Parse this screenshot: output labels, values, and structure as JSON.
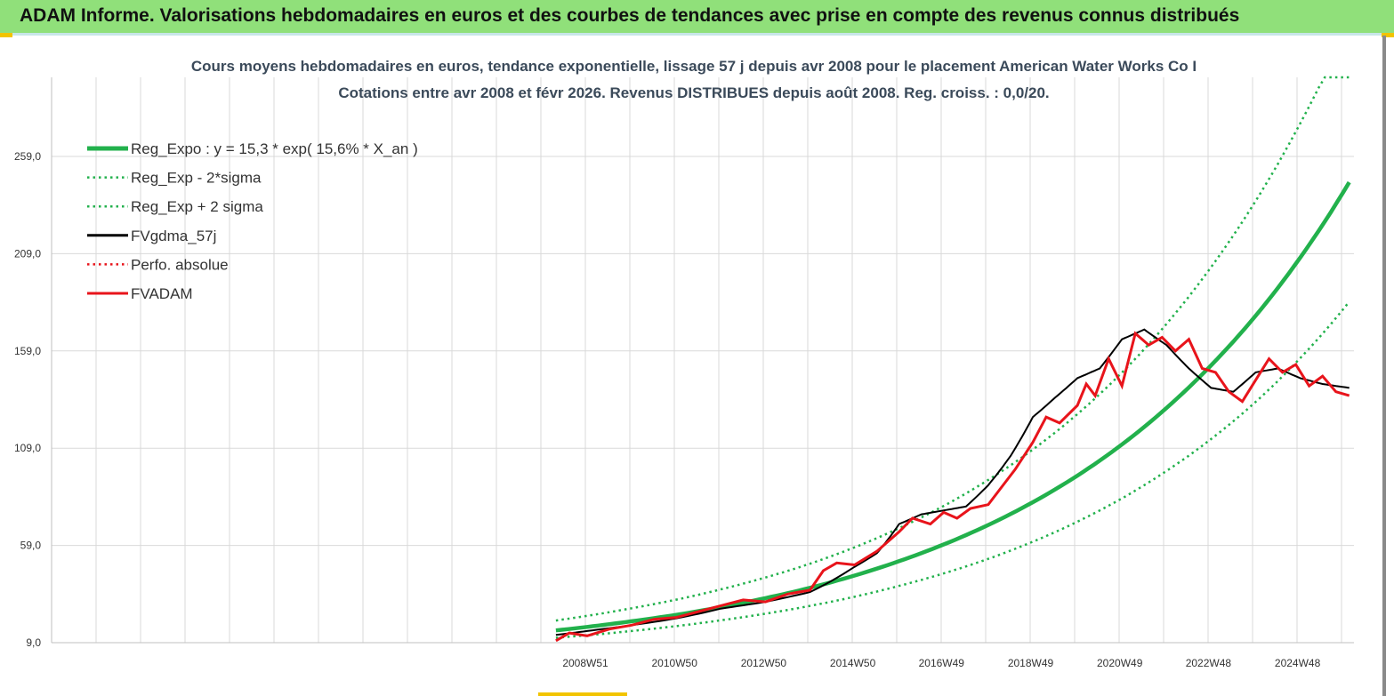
{
  "header": {
    "title": "ADAM Informe. Valorisations hebdomadaires en euros et des courbes de tendances avec prise en compte des revenus connus distribués"
  },
  "colors": {
    "header_bg": "#90e07a",
    "reg_expo": "#22b14c",
    "fvgdma": "#000000",
    "fvadam": "#e8141b",
    "perfo": "#e8141b",
    "grid": "#d9d9d9"
  },
  "chart_data": {
    "type": "line",
    "title": "Cours moyens hebdomadaires en euros, tendance exponentielle, lissage 57 j depuis avr 2008 pour le placement American Water Works Co I",
    "subtitle": "Cotations entre avr 2008 et févr 2026. Revenus DISTRIBUES depuis août 2008. Reg. croiss. : 0,0/20.",
    "xlabel": "",
    "ylabel": "",
    "ylim": [
      9.0,
      290.0
    ],
    "y_ticks": [
      "9,0",
      "59,0",
      "109,0",
      "159,0",
      "209,0",
      "259,0"
    ],
    "y_tick_values": [
      9,
      59,
      109,
      159,
      209,
      259
    ],
    "x_tick_labels": [
      "2008W51",
      "2010W50",
      "2012W50",
      "2014W50",
      "2016W49",
      "2018W49",
      "2020W49",
      "2022W48",
      "2024W48"
    ],
    "x_tick_years": [
      2008.96,
      2010.96,
      2012.96,
      2014.96,
      2016.95,
      2018.95,
      2020.95,
      2022.94,
      2024.94
    ],
    "x_start_year": 2008.3,
    "x_end_year": 2026.1,
    "grid": true,
    "legend_position": "top-left",
    "regression": {
      "a": 15.3,
      "rate": 0.156,
      "origin_year": 2008.3
    },
    "series": [
      {
        "name": "Reg_Expo : y = 15,3 * exp( 15,6% * X_an )",
        "style": "solid-thick",
        "color": "#22b14c",
        "x": [
          2008.3,
          2009,
          2010,
          2011,
          2012,
          2013,
          2014,
          2015,
          2016,
          2017,
          2018,
          2019,
          2020,
          2021,
          2022,
          2023,
          2024,
          2025,
          2026.1
        ],
        "values": [
          15.3,
          17.1,
          20.0,
          23.3,
          27.3,
          31.9,
          37.2,
          43.5,
          50.9,
          59.5,
          69.5,
          81.2,
          94.9,
          110.9,
          129.7,
          151.6,
          177.1,
          207.0,
          245.7
        ]
      },
      {
        "name": "Reg_Exp - 2*sigma",
        "style": "dotted",
        "color": "#22b14c",
        "x": [
          2008.3,
          2009,
          2010,
          2011,
          2012,
          2013,
          2014,
          2015,
          2016,
          2017,
          2018,
          2019,
          2020,
          2021,
          2022,
          2023,
          2024,
          2025,
          2026.1
        ],
        "values": [
          11.5,
          12.8,
          15.0,
          17.5,
          20.5,
          23.9,
          27.9,
          32.6,
          38.2,
          44.6,
          52.1,
          60.9,
          71.2,
          83.2,
          97.3,
          113.7,
          132.8,
          155.3,
          184.3
        ]
      },
      {
        "name": "Reg_Exp + 2 sigma",
        "style": "dotted",
        "color": "#22b14c",
        "x": [
          2008.3,
          2009,
          2010,
          2011,
          2012,
          2013,
          2014,
          2015,
          2016,
          2017,
          2018,
          2019,
          2020,
          2021,
          2022,
          2023,
          2024,
          2025,
          2026.1
        ],
        "values": [
          20.4,
          22.8,
          26.7,
          31.1,
          36.4,
          42.5,
          49.6,
          58.0,
          67.9,
          79.3,
          92.7,
          108.3,
          126.5,
          147.9,
          172.9,
          202.1,
          236.1,
          276.0,
          327.6
        ]
      },
      {
        "name": "FVgdma_57j",
        "style": "solid",
        "color": "#000000",
        "x": [
          2008.3,
          2009,
          2010,
          2011,
          2012,
          2013,
          2014,
          2015,
          2015.5,
          2016,
          2016.5,
          2017,
          2017.5,
          2018,
          2018.5,
          2019,
          2019.5,
          2020,
          2020.5,
          2021,
          2021.5,
          2022,
          2022.5,
          2023,
          2023.5,
          2024,
          2024.5,
          2025,
          2025.5,
          2026.1
        ],
        "values": [
          13.0,
          15.0,
          18.0,
          21.5,
          26.5,
          30.0,
          35.0,
          48.0,
          55.0,
          70.0,
          75.0,
          77.0,
          79.0,
          90.0,
          105.0,
          125.0,
          135.0,
          145.0,
          150.0,
          165.0,
          170.0,
          162.0,
          150.0,
          140.0,
          138.0,
          148.0,
          150.0,
          145.0,
          142.0,
          140.0
        ]
      },
      {
        "name": "Perfo. absolue",
        "style": "dotted",
        "color": "#e8141b",
        "x": [],
        "values": []
      },
      {
        "name": "FVADAM",
        "style": "solid",
        "color": "#e8141b",
        "x": [
          2008.3,
          2008.6,
          2009,
          2009.5,
          2010,
          2010.5,
          2011,
          2011.5,
          2012,
          2012.5,
          2013,
          2013.5,
          2014,
          2014.3,
          2014.6,
          2015,
          2015.5,
          2016,
          2016.3,
          2016.7,
          2017,
          2017.3,
          2017.6,
          2018,
          2018.3,
          2018.6,
          2019,
          2019.3,
          2019.6,
          2020,
          2020.2,
          2020.4,
          2020.7,
          2021,
          2021.3,
          2021.6,
          2021.9,
          2022.2,
          2022.5,
          2022.8,
          2023.1,
          2023.4,
          2023.7,
          2024,
          2024.3,
          2024.6,
          2024.9,
          2025.2,
          2025.5,
          2025.8,
          2026.1
        ],
        "values": [
          10.0,
          14.0,
          12.5,
          16.0,
          18.0,
          21.0,
          22.0,
          25.0,
          28.0,
          31.0,
          30.0,
          34.0,
          36.0,
          46.0,
          50.0,
          49.0,
          56.0,
          66.0,
          73.0,
          70.0,
          76.0,
          73.0,
          78.0,
          80.0,
          89.0,
          98.0,
          112.0,
          125.0,
          122.0,
          131.0,
          142.0,
          136.0,
          155.0,
          141.0,
          168.0,
          162.0,
          166.0,
          159.0,
          165.0,
          150.0,
          148.0,
          138.0,
          133.0,
          144.0,
          155.0,
          148.0,
          152.0,
          141.0,
          146.0,
          138.0,
          136.0
        ]
      }
    ]
  }
}
